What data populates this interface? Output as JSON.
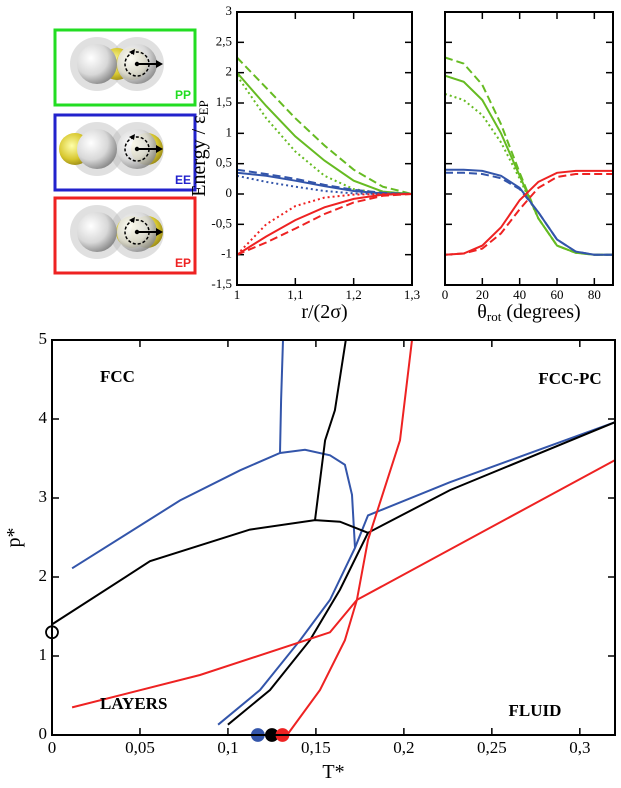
{
  "panel_labels": [
    {
      "label": "PP",
      "color": "#22dd22"
    },
    {
      "label": "EE",
      "color": "#2222cc"
    },
    {
      "label": "EP",
      "color": "#ee2222"
    }
  ],
  "chart_data": [
    {
      "type": "line",
      "ylabel": "Energy / ε",
      "ylabel_sub": "EP",
      "xlabel": "r/(2σ)",
      "x": [
        1,
        1.05,
        1.1,
        1.15,
        1.2,
        1.25,
        1.3
      ],
      "xlim": [
        1,
        1.3
      ],
      "xticks": [
        1,
        {
          "value": 1.1,
          "label": "1,1"
        },
        {
          "value": 1.2,
          "label": "1,2"
        },
        {
          "value": 1.3,
          "label": "1,3"
        }
      ],
      "ylim": [
        -1.5,
        3
      ],
      "yticks": [
        {
          "value": -1.5,
          "label": "-1,5"
        },
        -1,
        {
          "value": -0.5,
          "label": "-0,5"
        },
        0,
        {
          "value": 0.5,
          "label": "0,5"
        },
        1,
        {
          "value": 1.5,
          "label": "1,5"
        },
        2,
        {
          "value": 2.5,
          "label": "2,5"
        },
        3
      ],
      "ytick_labels": true,
      "series": [
        {
          "color": "#66bb22",
          "dash": "solid",
          "values": [
            2.0,
            1.45,
            0.95,
            0.55,
            0.22,
            0.04,
            0
          ]
        },
        {
          "color": "#66bb22",
          "dash": "dashed",
          "values": [
            2.25,
            1.75,
            1.25,
            0.8,
            0.4,
            0.12,
            0
          ]
        },
        {
          "color": "#66bb22",
          "dash": "dotted",
          "values": [
            1.95,
            1.25,
            0.7,
            0.3,
            0.08,
            0.01,
            0
          ]
        },
        {
          "color": "#3355aa",
          "dash": "solid",
          "values": [
            0.35,
            0.3,
            0.22,
            0.13,
            0.05,
            0.01,
            0
          ]
        },
        {
          "color": "#3355aa",
          "dash": "dashed",
          "values": [
            0.4,
            0.33,
            0.25,
            0.15,
            0.07,
            0.02,
            0
          ]
        },
        {
          "color": "#3355aa",
          "dash": "dotted",
          "values": [
            0.3,
            0.2,
            0.12,
            0.05,
            0.01,
            0,
            0
          ]
        },
        {
          "color": "#ee2222",
          "dash": "solid",
          "values": [
            -1,
            -0.7,
            -0.43,
            -0.22,
            -0.08,
            -0.01,
            0
          ]
        },
        {
          "color": "#ee2222",
          "dash": "dashed",
          "values": [
            -1,
            -0.8,
            -0.57,
            -0.33,
            -0.14,
            -0.03,
            0
          ]
        },
        {
          "color": "#ee2222",
          "dash": "dotted",
          "values": [
            -1,
            -0.5,
            -0.2,
            -0.06,
            -0.01,
            0,
            0
          ]
        }
      ]
    },
    {
      "type": "line",
      "xlabel": "θ",
      "xlabel_sub": "rot",
      "xlabel_rest": "(degrees)",
      "x": [
        0,
        10,
        20,
        30,
        40,
        50,
        60,
        70,
        80,
        90
      ],
      "xlim": [
        0,
        90
      ],
      "xticks": [
        0,
        20,
        40,
        60,
        80
      ],
      "ylim": [
        -1.5,
        3
      ],
      "yticks": [
        -1.5,
        -1,
        -0.5,
        0,
        0.5,
        1,
        1.5,
        2,
        2.5,
        3
      ],
      "ytick_labels": false,
      "series": [
        {
          "color": "#66bb22",
          "dash": "solid",
          "values": [
            1.95,
            1.85,
            1.55,
            1.0,
            0.3,
            -0.4,
            -0.85,
            -0.97,
            -1,
            -1
          ]
        },
        {
          "color": "#66bb22",
          "dash": "dashed",
          "values": [
            2.25,
            2.15,
            1.8,
            1.15,
            0.35,
            -0.4,
            -0.85,
            -0.97,
            -1,
            -1
          ]
        },
        {
          "color": "#66bb22",
          "dash": "dotted",
          "values": [
            1.65,
            1.55,
            1.3,
            0.85,
            0.25,
            -0.4,
            -0.85,
            -0.97,
            -1,
            -1
          ]
        },
        {
          "color": "#3355aa",
          "dash": "solid",
          "values": [
            0.4,
            0.4,
            0.38,
            0.3,
            0.1,
            -0.3,
            -0.75,
            -0.95,
            -1,
            -1
          ]
        },
        {
          "color": "#3355aa",
          "dash": "dashed",
          "values": [
            0.35,
            0.35,
            0.33,
            0.26,
            0.08,
            -0.3,
            -0.75,
            -0.95,
            -1,
            -1
          ]
        },
        {
          "color": "#ee2222",
          "dash": "solid",
          "values": [
            -1,
            -0.98,
            -0.85,
            -0.55,
            -0.1,
            0.2,
            0.35,
            0.38,
            0.38,
            0.38
          ]
        },
        {
          "color": "#ee2222",
          "dash": "dashed",
          "values": [
            -1,
            -0.98,
            -0.9,
            -0.65,
            -0.25,
            0.1,
            0.28,
            0.33,
            0.33,
            0.33
          ]
        }
      ]
    },
    {
      "type": "line",
      "xlabel": "T*",
      "ylabel": "p*",
      "xlim": [
        0,
        0.32
      ],
      "xticks": [
        0,
        {
          "value": 0.05,
          "label": "0,05"
        },
        {
          "value": 0.1,
          "label": "0,1"
        },
        {
          "value": 0.15,
          "label": "0,15"
        },
        {
          "value": 0.2,
          "label": "0,2"
        },
        {
          "value": 0.25,
          "label": "0,25"
        },
        {
          "value": 0.3,
          "label": "0,3"
        }
      ],
      "ylim": [
        0,
        5
      ],
      "yticks": [
        0,
        1,
        2,
        3,
        4,
        5
      ],
      "ytick_labels": true,
      "annotations": [
        "FCC",
        "FCC-PC",
        "LAYERS",
        "FLUID"
      ],
      "series": [
        {
          "color": "#3355aa",
          "dash": "solid",
          "x": [
            0.0114,
            0.0728,
            0.1069,
            0.1296,
            0.1438,
            0.158,
            0.1665,
            0.1705,
            0.1722
          ],
          "values": [
            2.11,
            2.97,
            3.35,
            3.57,
            3.61,
            3.54,
            3.42,
            3.04,
            2.37
          ]
        },
        {
          "color": "#3355aa",
          "dash": "solid",
          "x": [
            0.1313,
            0.1302,
            0.1296
          ],
          "values": [
            5,
            4.24,
            3.57
          ]
        },
        {
          "color": "#3355aa",
          "dash": "solid",
          "x": [
            0.0944,
            0.1182,
            0.141,
            0.158,
            0.1722,
            0.1796,
            0.2262,
            0.32
          ],
          "values": [
            0.13,
            0.57,
            1.2,
            1.71,
            2.37,
            2.78,
            3.2,
            3.96
          ]
        },
        {
          "color": "#000000",
          "dash": "solid",
          "x": [
            0,
            0.0557,
            0.1125,
            0.1495,
            0.1637,
            0.1796
          ],
          "values": [
            1.4,
            2.2,
            2.6,
            2.72,
            2.7,
            2.56
          ]
        },
        {
          "color": "#000000",
          "dash": "solid",
          "x": [
            0.167,
            0.1608,
            0.1552,
            0.1495
          ],
          "values": [
            5,
            4.11,
            3.73,
            2.72
          ]
        },
        {
          "color": "#000000",
          "dash": "solid",
          "x": [
            0.1,
            0.1239,
            0.1466,
            0.1637,
            0.1796,
            0.2262,
            0.32
          ],
          "values": [
            0.13,
            0.57,
            1.2,
            1.84,
            2.56,
            3.1,
            3.96
          ]
        },
        {
          "color": "#ee2222",
          "dash": "solid",
          "x": [
            0.0114,
            0.0841,
            0.158,
            0.1733,
            0.32
          ],
          "values": [
            0.35,
            0.76,
            1.3,
            1.71,
            3.48
          ]
        },
        {
          "color": "#ee2222",
          "dash": "solid",
          "x": [
            0.1336,
            0.1523,
            0.1665,
            0.1733,
            0.1796,
            0.1978,
            0.2046
          ],
          "values": [
            0,
            0.57,
            1.2,
            1.71,
            2.47,
            3.73,
            5
          ]
        }
      ],
      "points": {
        "x": [
          0.117,
          0.125,
          0.131,
          0
        ],
        "values": [
          0,
          0,
          0,
          1.3
        ],
        "colors": [
          "#3355aa",
          "#000000",
          "#ee2222",
          "#000000"
        ],
        "filled": [
          true,
          true,
          true,
          false
        ]
      }
    }
  ]
}
